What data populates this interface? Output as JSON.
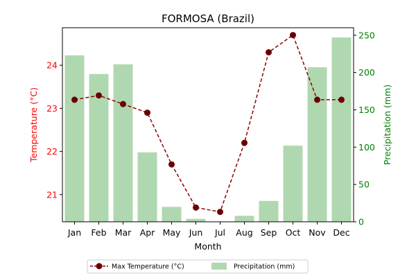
{
  "chart_data": {
    "type": "bar+line",
    "title": "FORMOSA (Brazil)",
    "xlabel": "Month",
    "categories": [
      "Jan",
      "Feb",
      "Mar",
      "Apr",
      "May",
      "Jun",
      "Jul",
      "Aug",
      "Sep",
      "Oct",
      "Nov",
      "Dec"
    ],
    "left_axis": {
      "label": "Temperature (°C)",
      "color": "#ff0000",
      "ylim": [
        20.37,
        24.87
      ],
      "ticks": [
        21,
        22,
        23,
        24
      ]
    },
    "right_axis": {
      "label": "Precipitation (mm)",
      "color": "#008000",
      "ylim": [
        0,
        260
      ],
      "ticks": [
        0,
        50,
        100,
        150,
        200,
        250
      ]
    },
    "series": [
      {
        "name": "Max Temperature (°C)",
        "kind": "line",
        "axis": "left",
        "color": "#8b0000",
        "marker_color": "#6b0000",
        "values": [
          23.2,
          23.3,
          23.1,
          22.9,
          21.7,
          20.7,
          20.6,
          22.2,
          24.3,
          24.7,
          23.2,
          23.2
        ]
      },
      {
        "name": "Precipitation (mm)",
        "kind": "bar",
        "axis": "right",
        "color": "#b0d8b0",
        "values": [
          223,
          198,
          211,
          93,
          20,
          4,
          0,
          8,
          28,
          102,
          207,
          247
        ]
      }
    ],
    "legend": {
      "placement": "bottom-center",
      "columns": 2
    },
    "grid": false
  }
}
